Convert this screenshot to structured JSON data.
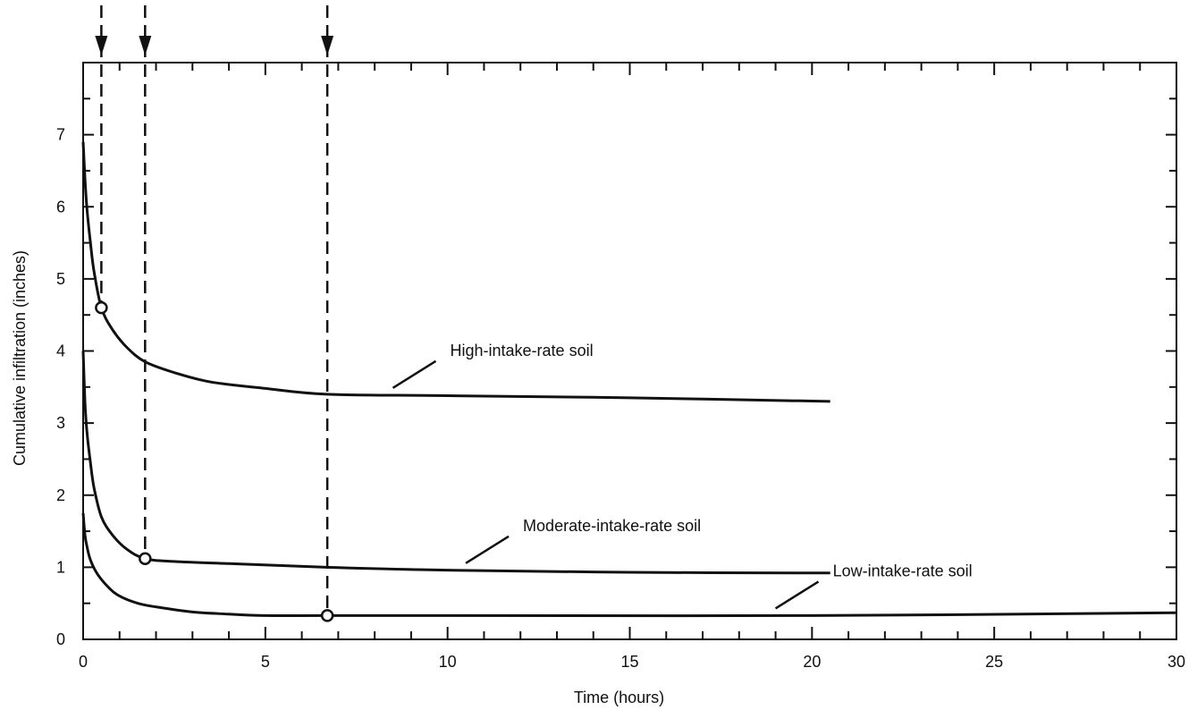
{
  "chart_data": {
    "type": "line",
    "title": "",
    "xlabel": "Time (hours)",
    "ylabel": "Cumulative infiltration (inches)",
    "xlim": [
      0,
      30
    ],
    "ylim": [
      0,
      8
    ],
    "x_ticks": [
      0,
      5,
      10,
      15,
      20,
      25,
      30
    ],
    "y_ticks": [
      0,
      1,
      2,
      3,
      4,
      5,
      6,
      7
    ],
    "grid": false,
    "series": [
      {
        "name": "High-intake-rate soil",
        "x": [
          0,
          0.05,
          0.1,
          0.2,
          0.3,
          0.5,
          0.8,
          1.2,
          1.7,
          2.5,
          3.5,
          5,
          6.7,
          10,
          15,
          20.5
        ],
        "y": [
          6.9,
          6.4,
          6.0,
          5.5,
          5.1,
          4.6,
          4.3,
          4.05,
          3.85,
          3.7,
          3.57,
          3.48,
          3.4,
          3.38,
          3.35,
          3.3
        ]
      },
      {
        "name": "Moderate-intake-rate soil",
        "x": [
          0,
          0.05,
          0.1,
          0.2,
          0.3,
          0.5,
          0.8,
          1.2,
          1.7,
          2.5,
          4,
          6.7,
          10,
          15,
          20.5
        ],
        "y": [
          4.0,
          3.3,
          2.9,
          2.45,
          2.1,
          1.7,
          1.45,
          1.25,
          1.12,
          1.08,
          1.05,
          1.0,
          0.96,
          0.93,
          0.92
        ]
      },
      {
        "name": "Low-intake-rate soil",
        "x": [
          0,
          0.05,
          0.1,
          0.2,
          0.4,
          0.7,
          1.0,
          1.5,
          2.0,
          3.0,
          4.0,
          5.0,
          6.7,
          10,
          20,
          30
        ],
        "y": [
          1.75,
          1.45,
          1.3,
          1.1,
          0.9,
          0.72,
          0.6,
          0.5,
          0.45,
          0.38,
          0.35,
          0.33,
          0.33,
          0.33,
          0.33,
          0.37
        ]
      }
    ],
    "marked_points": [
      {
        "x": 0.5,
        "y": 4.6
      },
      {
        "x": 1.7,
        "y": 1.12
      },
      {
        "x": 6.7,
        "y": 0.33
      }
    ],
    "dashed_reference_x": [
      0.5,
      1.7,
      6.7
    ],
    "annotations": [
      {
        "text": "High-intake-rate soil",
        "series": 0,
        "at_x": 8.5
      },
      {
        "text": "Moderate-intake-rate soil",
        "series": 1,
        "at_x": 10.5
      },
      {
        "text": "Low-intake-rate soil",
        "series": 2,
        "at_x": 19
      }
    ]
  }
}
